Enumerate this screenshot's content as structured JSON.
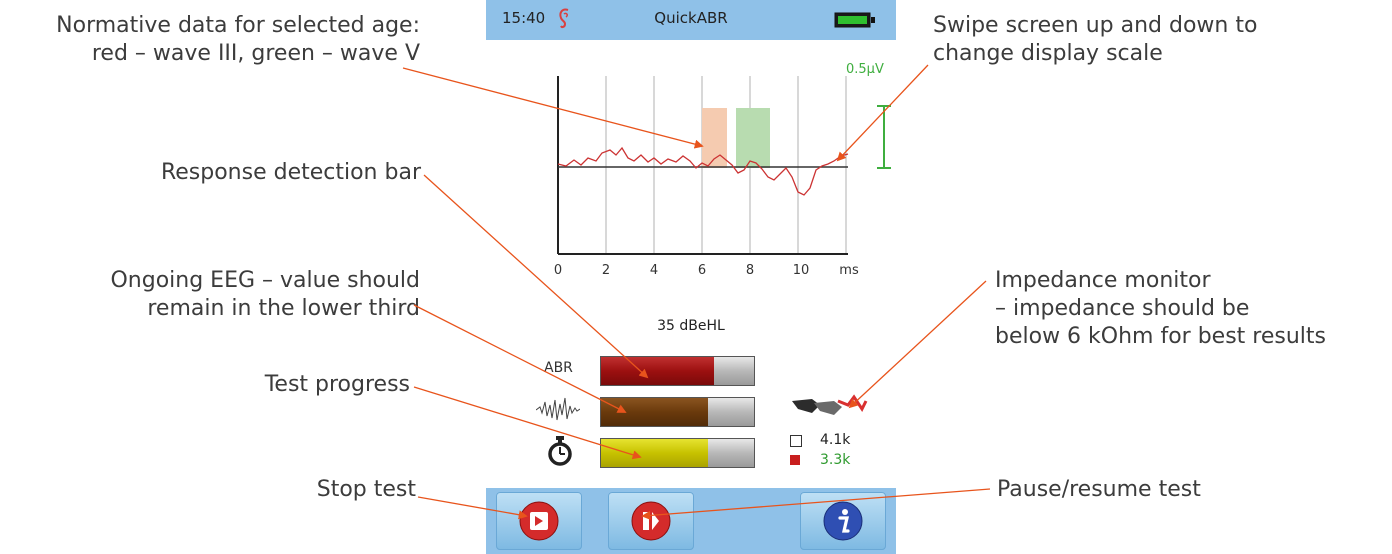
{
  "device": {
    "status_time": "15:40",
    "app_title": "QuickABR",
    "scale_label": "0.5µV",
    "x_ticks": [
      "0",
      "2",
      "4",
      "6",
      "8",
      "10",
      "ms"
    ],
    "stimulus_level": "35 dBeHL",
    "bars": {
      "abr": {
        "label": "ABR",
        "value": 0.74
      },
      "eeg": {
        "value": 0.7
      },
      "progress": {
        "value": 0.7
      }
    },
    "impedance": {
      "white": "4.1k",
      "red": "3.3k"
    },
    "colors": {
      "statusbar": "#8fc1e8",
      "normative_wave_iii": "#f5cbb0",
      "normative_wave_v": "#b8dcb0",
      "scale_green": "#3fae3f",
      "waveform": "#cc3333"
    }
  },
  "annotations": {
    "normative": [
      "Normative data for selected age:",
      "red – wave III, green – wave V"
    ],
    "response_bar": "Response detection bar",
    "eeg": [
      "Ongoing EEG – value should",
      "remain in the lower third"
    ],
    "progress": "Test progress",
    "stop": "Stop test",
    "swipe": [
      "Swipe screen up and down to",
      "change display scale"
    ],
    "impedance": [
      "Impedance monitor",
      "– impedance should be",
      "below 6 kOhm for best results"
    ],
    "pause": "Pause/resume test"
  }
}
